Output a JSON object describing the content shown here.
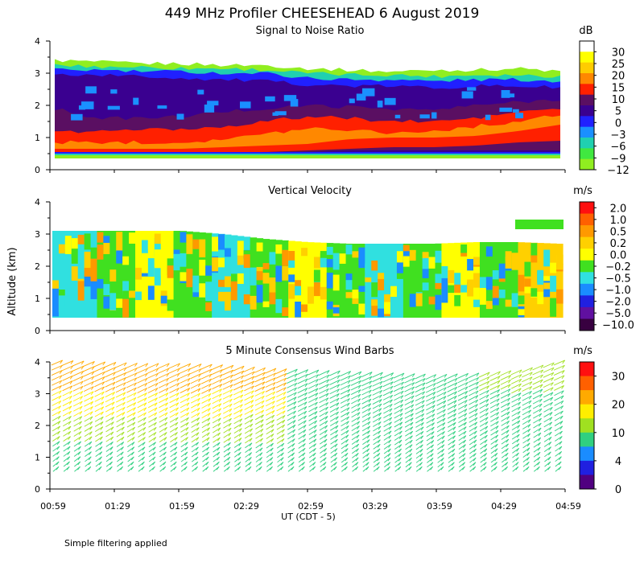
{
  "figure": {
    "title": "449 MHz Profiler CHEESEHEAD  6 August 2019",
    "ylabel": "Altitude (km)",
    "xlabel": "UT  (CDT - 5)",
    "footnote": "Simple filtering applied",
    "x_ticks": [
      "00:59",
      "01:29",
      "01:59",
      "02:29",
      "02:59",
      "03:29",
      "03:59",
      "04:29",
      "04:59"
    ]
  },
  "chart_data": [
    {
      "type": "heatmap",
      "title": "Signal to Noise Ratio",
      "units": "dB",
      "ylim": [
        0,
        4
      ],
      "y_ticks": [
        "0",
        "1",
        "2",
        "3",
        "4"
      ],
      "colorbar": {
        "labels": [
          "30",
          "25",
          "20",
          "15",
          "10",
          "5",
          "0",
          "−3",
          "−6",
          "−9",
          "−12"
        ],
        "colors": [
          "#ffffff",
          "#ffff00",
          "#ffcc00",
          "#ff8800",
          "#ff2000",
          "#5a0f62",
          "#3a0090",
          "#2020ff",
          "#1a90ff",
          "#20d0b0",
          "#40e840",
          "#90ee20"
        ]
      },
      "layers": [
        {
          "y_low": [
            0.35,
            0.35,
            0.35,
            0.35,
            0.35,
            0.35,
            0.35,
            0.35,
            0.35,
            0.35,
            0.35,
            0.35,
            0.35
          ],
          "y_high": [
            3.4,
            3.35,
            3.3,
            3.3,
            3.25,
            3.25,
            3.15,
            3.1,
            3.05,
            3.1,
            3.1,
            3.15,
            3.05
          ],
          "color": "#90ee20"
        },
        {
          "y_low": [
            0.45,
            0.45,
            0.45,
            0.45,
            0.45,
            0.45,
            0.45,
            0.45,
            0.45,
            0.45,
            0.45,
            0.45,
            0.45
          ],
          "y_high": [
            3.25,
            3.2,
            3.2,
            3.15,
            3.15,
            3.1,
            3.0,
            2.95,
            2.95,
            2.9,
            2.95,
            2.95,
            2.9
          ],
          "color": "#20d0b0"
        },
        {
          "y_low": [
            0.5,
            0.5,
            0.5,
            0.5,
            0.5,
            0.5,
            0.5,
            0.5,
            0.5,
            0.5,
            0.5,
            0.5,
            0.5
          ],
          "y_high": [
            3.1,
            3.1,
            3.05,
            3.05,
            3.0,
            3.0,
            2.85,
            2.8,
            2.8,
            2.75,
            2.8,
            2.8,
            2.75
          ],
          "color": "#2020ff"
        },
        {
          "y_low": [
            0.55,
            0.55,
            0.55,
            0.55,
            0.55,
            0.55,
            0.55,
            0.55,
            0.55,
            0.55,
            0.55,
            0.55,
            0.55
          ],
          "y_high": [
            2.95,
            2.95,
            2.9,
            2.85,
            2.8,
            2.75,
            2.65,
            2.6,
            2.6,
            2.55,
            2.6,
            2.6,
            2.55
          ],
          "color": "#3a0090"
        },
        {
          "y_low": [
            0.55,
            0.55,
            0.55,
            0.55,
            0.55,
            0.55,
            0.55,
            0.6,
            0.6,
            0.6,
            0.6,
            0.6,
            0.6
          ],
          "y_high": [
            1.9,
            1.6,
            1.6,
            1.65,
            1.8,
            1.9,
            2.0,
            1.95,
            1.9,
            1.85,
            2.0,
            2.1,
            2.2
          ],
          "color": "#5a0f62"
        },
        {
          "y_low": [
            0.55,
            0.55,
            0.55,
            0.55,
            0.55,
            0.55,
            0.6,
            0.65,
            0.7,
            0.7,
            0.75,
            0.85,
            0.9
          ],
          "y_high": [
            1.15,
            1.2,
            1.25,
            1.25,
            1.35,
            1.5,
            1.65,
            1.6,
            1.5,
            1.5,
            1.6,
            1.8,
            1.9
          ],
          "color": "#ff2000"
        },
        {
          "y_low": [
            0.65,
            0.65,
            0.65,
            0.65,
            0.7,
            0.75,
            0.8,
            0.95,
            1.0,
            1.0,
            1.05,
            1.2,
            1.4
          ],
          "y_high": [
            0.85,
            0.85,
            0.85,
            0.85,
            0.95,
            1.1,
            1.3,
            1.25,
            1.15,
            1.2,
            1.35,
            1.5,
            1.7
          ],
          "color": "#ff8800"
        }
      ]
    },
    {
      "type": "heatmap",
      "title": "Vertical Velocity",
      "units": "m/s",
      "ylim": [
        0,
        4
      ],
      "y_ticks": [
        "0",
        "1",
        "2",
        "3",
        "4"
      ],
      "colorbar": {
        "labels": [
          "2.0",
          "1.0",
          "0.5",
          "0.2",
          "0.0",
          "−0.2",
          "−0.5",
          "−1.0",
          "−2.0",
          "−5.0",
          "−10.0"
        ],
        "colors": [
          "#ff1010",
          "#ff6000",
          "#ff9900",
          "#ffd000",
          "#ffff00",
          "#40e020",
          "#30e0e0",
          "#1a8cff",
          "#2020e0",
          "#6010a0",
          "#380040"
        ]
      },
      "data_region": {
        "y_low": 0.4,
        "y_high": [
          3.1,
          3.1,
          3.1,
          3.1,
          3.0,
          2.85,
          2.75,
          2.7,
          2.7,
          2.7,
          2.75,
          2.75,
          2.7
        ]
      },
      "dominant_bands": [
        "#30e0e0",
        "#40e020",
        "#ffff00",
        "#40e020",
        "#30e0e0",
        "#40e020",
        "#ffff00",
        "#40e020",
        "#30e0e0",
        "#40e020",
        "#ffff00",
        "#40e020",
        "#ffd000"
      ]
    },
    {
      "type": "scatter",
      "title": "5 Minute Consensus Wind Barbs",
      "units": "m/s",
      "ylim": [
        0,
        4
      ],
      "y_ticks": [
        "0",
        "1",
        "2",
        "3",
        "4"
      ],
      "colorbar": {
        "labels": [
          "30",
          "20",
          "10",
          "4",
          "0"
        ],
        "colors": [
          "#ff1010",
          "#ff6000",
          "#ffaa00",
          "#ffee00",
          "#a0e020",
          "#30d080",
          "#1a8cff",
          "#2020e0",
          "#500080"
        ]
      },
      "profiles": {
        "count": 48,
        "y_low": 0.55,
        "y_high": [
          3.9,
          3.85,
          3.8,
          3.8,
          3.75,
          3.65,
          3.6,
          3.55,
          3.5,
          3.45,
          3.5,
          3.6,
          3.9
        ]
      }
    }
  ]
}
